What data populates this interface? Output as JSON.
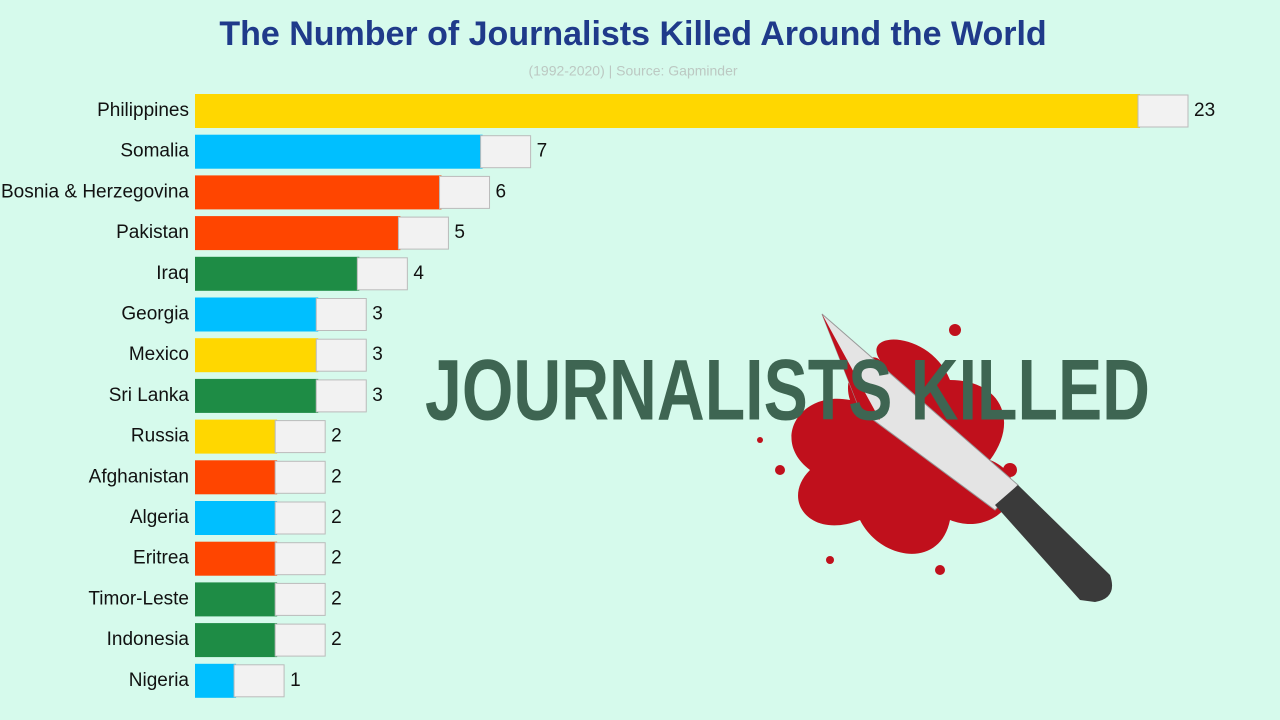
{
  "chart_data": {
    "type": "bar",
    "orientation": "horizontal",
    "title": "The Number of Journalists Killed Around the World",
    "subtitle": "(1992-2020) | Source: Gapminder",
    "annotation": "JOURNALISTS KILLED",
    "categories": [
      "Philippines",
      "Somalia",
      "Bosnia & Herzegovina",
      "Pakistan",
      "Iraq",
      "Georgia",
      "Mexico",
      "Sri Lanka",
      "Russia",
      "Afghanistan",
      "Algeria",
      "Eritrea",
      "Timor-Leste",
      "Indonesia",
      "Nigeria"
    ],
    "values": [
      23,
      7,
      6,
      5,
      4,
      3,
      3,
      3,
      2,
      2,
      2,
      2,
      2,
      2,
      1
    ],
    "colors": [
      "#ffd700",
      "#00bfff",
      "#ff4500",
      "#ff4500",
      "#1e8c45",
      "#00bfff",
      "#ffd700",
      "#1e8c45",
      "#ffd700",
      "#ff4500",
      "#00bfff",
      "#ff4500",
      "#1e8c45",
      "#1e8c45",
      "#00bfff"
    ]
  }
}
